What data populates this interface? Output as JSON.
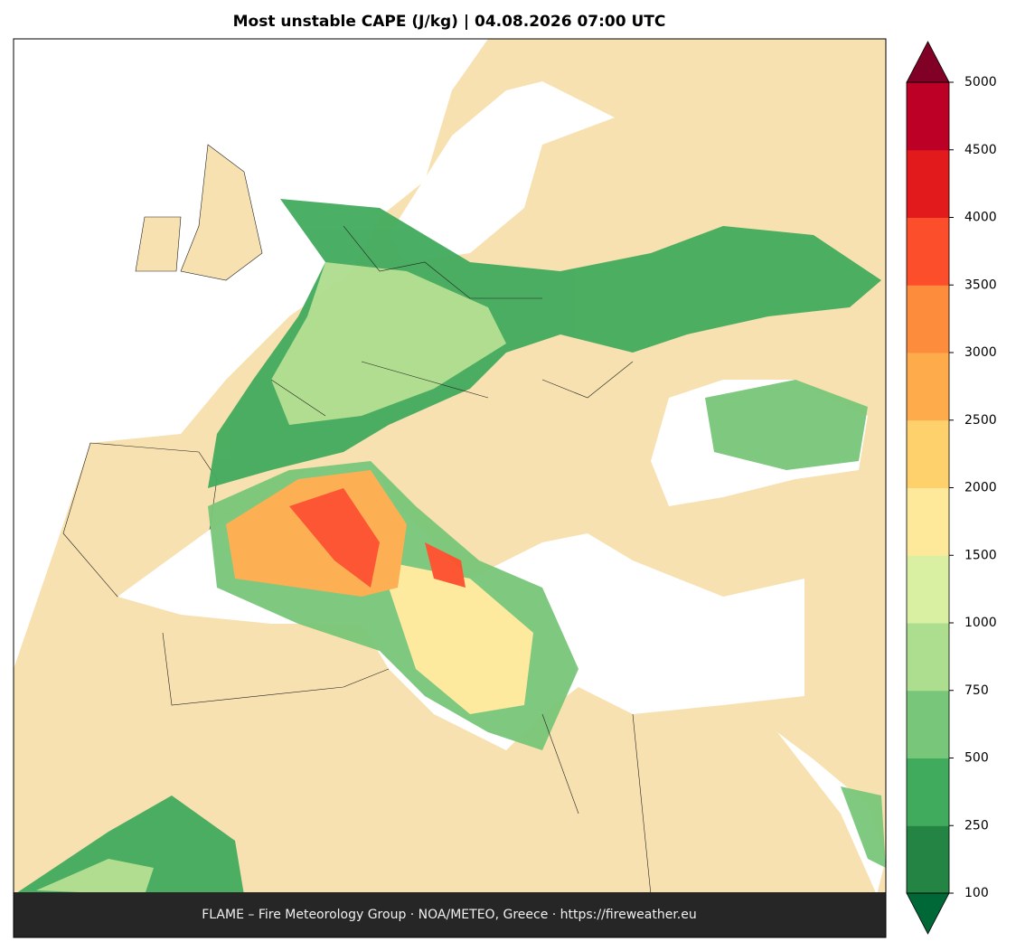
{
  "title": "Most unstable CAPE (J/kg)  |  04.08.2026 07:00 UTC",
  "footer": "FLAME – Fire Meteorology Group · NOA/METEO, Greece · https://fireweather.eu",
  "colorbar": {
    "levels": [
      100,
      250,
      500,
      750,
      1000,
      1500,
      2000,
      2500,
      3000,
      3500,
      4000,
      4500,
      5000
    ],
    "colors": [
      "#238443",
      "#41ab5d",
      "#78c679",
      "#addd8e",
      "#d9f0a3",
      "#fee99a",
      "#fed16c",
      "#fdab4b",
      "#fd8d3c",
      "#fc4e2a",
      "#e31a1c",
      "#bd0026"
    ],
    "under_color": "#006837",
    "over_color": "#800026"
  }
}
